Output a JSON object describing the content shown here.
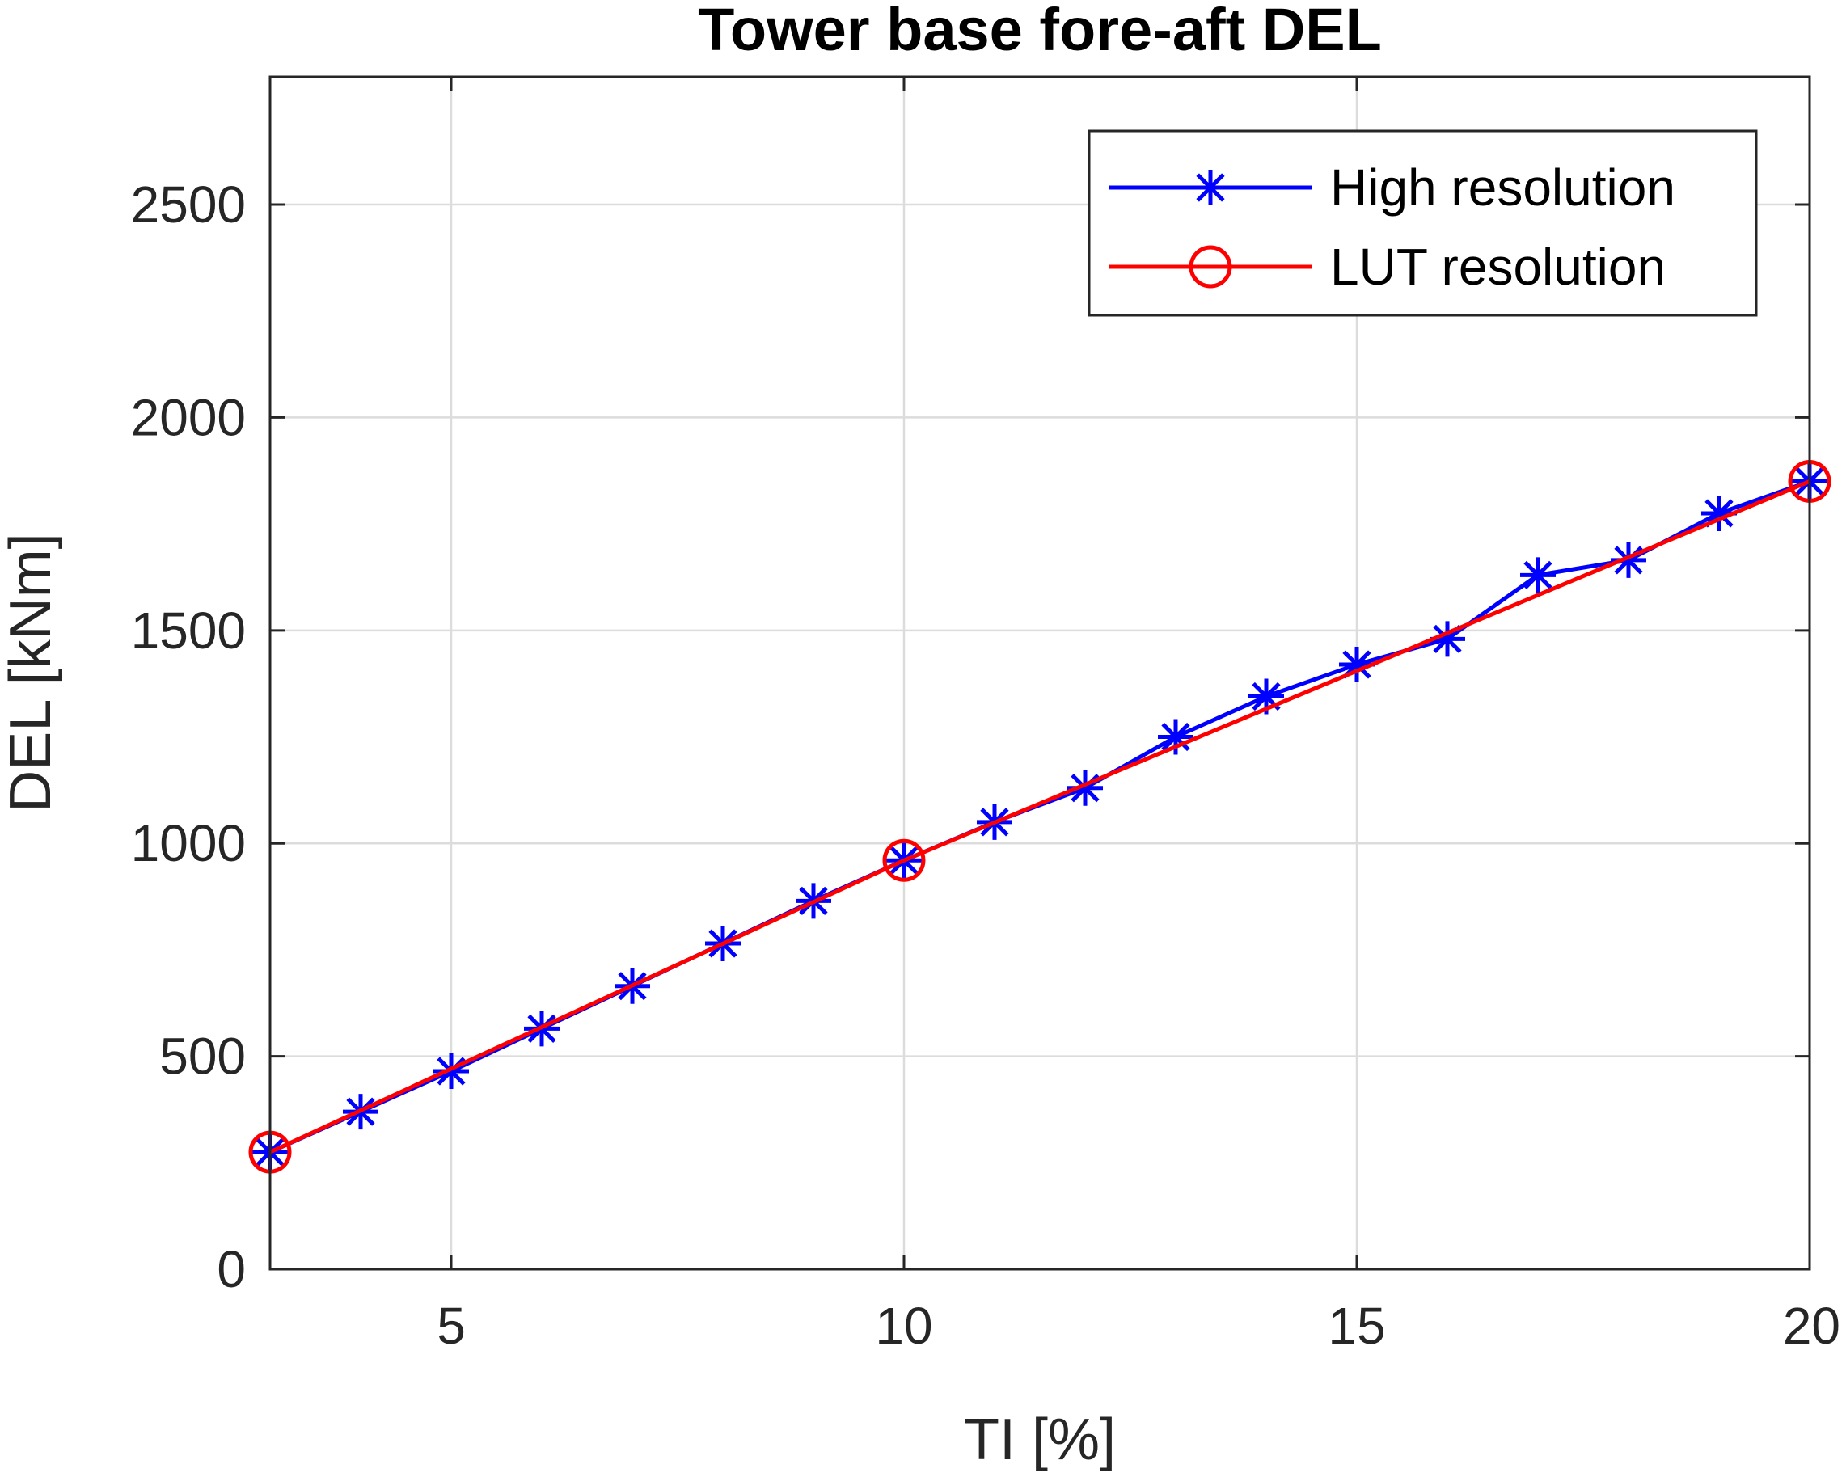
{
  "chart_data": {
    "type": "line",
    "title": "Tower base fore-aft DEL",
    "xlabel": "TI [%]",
    "ylabel": "DEL [kNm]",
    "xlim": [
      3,
      20
    ],
    "ylim": [
      0,
      2800
    ],
    "xticks": [
      5,
      10,
      15,
      20
    ],
    "yticks": [
      0,
      500,
      1000,
      1500,
      2000,
      2500
    ],
    "grid": true,
    "legend_position": "top-right",
    "series": [
      {
        "name": "High resolution",
        "color": "#0000ff",
        "marker": "asterisk",
        "x": [
          3,
          4,
          5,
          6,
          7,
          8,
          9,
          10,
          11,
          12,
          13,
          14,
          15,
          16,
          17,
          18,
          19,
          20
        ],
        "y": [
          275,
          370,
          465,
          565,
          665,
          765,
          865,
          960,
          1050,
          1130,
          1250,
          1345,
          1420,
          1480,
          1630,
          1665,
          1775,
          1850
        ]
      },
      {
        "name": "LUT resolution",
        "color": "#ff0000",
        "marker": "circle",
        "x": [
          3,
          10,
          20
        ],
        "y": [
          275,
          960,
          1850
        ]
      }
    ]
  }
}
